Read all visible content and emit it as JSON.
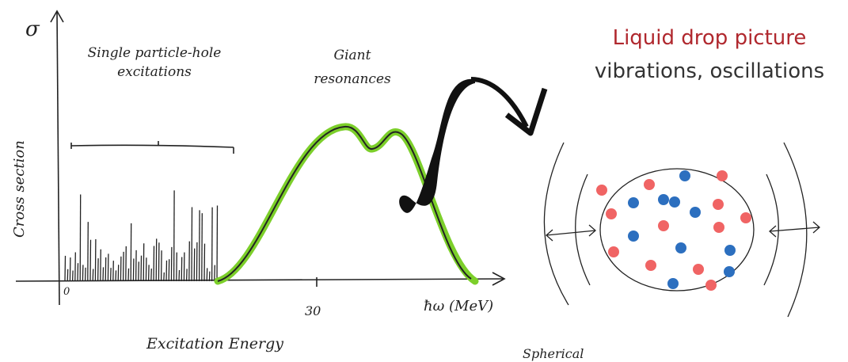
{
  "sketch": {
    "sigma": "σ",
    "y_axis_label": "Cross section",
    "single_label": "Single particle-hole excitations",
    "giant_label": "Giant resonances",
    "tick_zero": "0",
    "tick_thirty": "30",
    "x_axis_unit": "ħω (MeV)",
    "x_axis_label": "Excitation Energy",
    "bottom_label": "Spherical"
  },
  "panel": {
    "title": "Liquid drop picture",
    "subtitle": "vibrations, oscillations"
  }
}
